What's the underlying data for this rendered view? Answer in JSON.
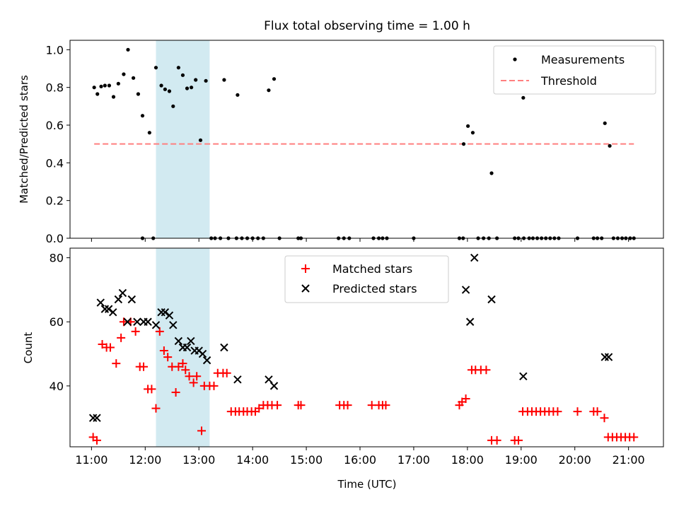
{
  "colors": {
    "measurement": "#000000",
    "threshold": "#ff7f7f",
    "matched": "#ff0000",
    "predicted": "#000000",
    "highlight_fill": "#add8e6"
  },
  "chart_data": [
    {
      "type": "scatter",
      "title": "Flux total observing time = 1.00 h",
      "xlabel": "",
      "ylabel": "Matched/Predicted stars",
      "xlim": [
        10.6,
        21.65
      ],
      "ylim": [
        0,
        1.05
      ],
      "yticks": [
        0.0,
        0.2,
        0.4,
        0.6,
        0.8,
        1.0
      ],
      "ytick_labels": [
        "0.0",
        "0.2",
        "0.4",
        "0.6",
        "0.8",
        "1.0"
      ],
      "highlight": [
        12.2,
        13.2
      ],
      "legend_position": "upper right",
      "threshold": {
        "name": "Threshold",
        "value": 0.5,
        "x": [
          11.05,
          21.1
        ]
      },
      "series": [
        {
          "name": "Measurements",
          "x": [
            11.05,
            11.11,
            11.18,
            11.25,
            11.33,
            11.41,
            11.5,
            11.6,
            11.68,
            11.78,
            11.87,
            11.95,
            12.08,
            12.2,
            12.3,
            12.37,
            12.45,
            12.52,
            12.62,
            12.7,
            12.78,
            12.86,
            12.94,
            13.03,
            13.13,
            13.23,
            13.47,
            13.72,
            14.3,
            14.4,
            17.93,
            18.01,
            18.1,
            18.45,
            19.04,
            20.56,
            20.65,
            11.95,
            12.15,
            13.3,
            13.4,
            13.55,
            13.7,
            13.8,
            13.9,
            14.0,
            14.1,
            14.2,
            14.5,
            14.85,
            14.9,
            15.6,
            15.7,
            15.8,
            16.25,
            16.35,
            16.42,
            16.5,
            17.0,
            17.85,
            17.92,
            18.2,
            18.3,
            18.4,
            18.55,
            18.88,
            18.95,
            19.05,
            19.15,
            19.22,
            19.3,
            19.38,
            19.46,
            19.54,
            19.62,
            19.7,
            20.05,
            20.35,
            20.42,
            20.5,
            20.72,
            20.8,
            20.88,
            20.95,
            21.03,
            21.1
          ],
          "y": [
            0.8,
            0.765,
            0.805,
            0.81,
            0.81,
            0.75,
            0.82,
            0.87,
            1.0,
            0.85,
            0.765,
            0.65,
            0.56,
            0.905,
            0.81,
            0.79,
            0.78,
            0.7,
            0.905,
            0.865,
            0.795,
            0.8,
            0.84,
            0.52,
            0.835,
            0.0,
            0.84,
            0.76,
            0.785,
            0.845,
            0.5,
            0.595,
            0.56,
            0.345,
            0.745,
            0.61,
            0.49,
            0.0,
            0.0,
            0.0,
            0.0,
            0.0,
            0.0,
            0.0,
            0.0,
            0.0,
            0.0,
            0.0,
            0.0,
            0.0,
            0.0,
            0.0,
            0.0,
            0.0,
            0.0,
            0.0,
            0.0,
            0.0,
            0.0,
            0.0,
            0.0,
            0.0,
            0.0,
            0.0,
            0.0,
            0.0,
            0.0,
            0.0,
            0.0,
            0.0,
            0.0,
            0.0,
            0.0,
            0.0,
            0.0,
            0.0,
            0.0,
            0.0,
            0.0,
            0.0,
            0.0,
            0.0,
            0.0,
            0.0,
            0.0,
            0.0
          ]
        }
      ]
    },
    {
      "type": "scatter",
      "title": "",
      "xlabel": "Time (UTC)",
      "ylabel": "Count",
      "xlim": [
        10.6,
        21.65
      ],
      "ylim": [
        21,
        83
      ],
      "yticks": [
        40,
        60,
        80
      ],
      "ytick_labels": [
        "40",
        "60",
        "80"
      ],
      "xticks": [
        11,
        12,
        13,
        14,
        15,
        16,
        17,
        18,
        19,
        20,
        21
      ],
      "xtick_labels": [
        "11:00",
        "12:00",
        "13:00",
        "14:00",
        "15:00",
        "16:00",
        "17:00",
        "18:00",
        "19:00",
        "20:00",
        "21:00"
      ],
      "highlight": [
        12.2,
        13.2
      ],
      "legend_position": "upper center",
      "series": [
        {
          "name": "Matched stars",
          "marker": "plus",
          "x": [
            11.03,
            11.1,
            11.2,
            11.28,
            11.35,
            11.46,
            11.55,
            11.6,
            11.73,
            11.82,
            11.9,
            11.97,
            12.05,
            12.12,
            12.2,
            12.27,
            12.35,
            12.42,
            12.5,
            12.57,
            12.62,
            12.7,
            12.75,
            12.82,
            12.9,
            12.96,
            13.05,
            13.1,
            13.2,
            13.28,
            13.35,
            13.45,
            13.52,
            13.6,
            13.68,
            13.75,
            13.83,
            13.9,
            13.98,
            14.05,
            14.12,
            14.2,
            14.28,
            14.36,
            14.46,
            14.85,
            14.9,
            15.62,
            15.7,
            15.77,
            16.22,
            16.35,
            16.42,
            16.48,
            17.85,
            17.9,
            17.97,
            18.08,
            18.15,
            18.25,
            18.35,
            18.45,
            18.55,
            18.88,
            18.95,
            19.03,
            19.12,
            19.2,
            19.28,
            19.36,
            19.44,
            19.52,
            19.6,
            19.68,
            20.05,
            20.35,
            20.42,
            20.55,
            20.62,
            20.7,
            20.78,
            20.86,
            20.94,
            21.02,
            21.1
          ],
          "y": [
            24,
            23,
            53,
            52,
            52,
            47,
            55,
            60,
            60,
            57,
            46,
            46,
            39,
            39,
            33,
            57,
            51,
            49,
            46,
            38,
            46,
            47,
            45,
            43,
            41,
            43,
            26,
            40,
            40,
            40,
            44,
            44,
            44,
            32,
            32,
            32,
            32,
            32,
            32,
            32,
            33,
            34,
            34,
            34,
            34,
            34,
            34,
            34,
            34,
            34,
            34,
            34,
            34,
            34,
            34,
            35,
            36,
            45,
            45,
            45,
            45,
            23,
            23,
            23,
            23,
            32,
            32,
            32,
            32,
            32,
            32,
            32,
            32,
            32,
            32,
            32,
            32,
            30,
            24,
            24,
            24,
            24,
            24,
            24,
            24
          ]
        },
        {
          "name": "Predicted stars",
          "marker": "x",
          "x": [
            11.03,
            11.1,
            11.17,
            11.25,
            11.32,
            11.4,
            11.5,
            11.58,
            11.67,
            11.75,
            11.85,
            11.97,
            12.05,
            12.2,
            12.3,
            12.37,
            12.45,
            12.52,
            12.62,
            12.7,
            12.78,
            12.85,
            12.92,
            13.0,
            13.07,
            13.15,
            13.47,
            13.72,
            14.3,
            14.4,
            17.97,
            18.05,
            18.13,
            18.45,
            19.04,
            20.56,
            20.63
          ],
          "y": [
            30,
            30,
            66,
            64,
            64,
            63,
            67,
            69,
            60,
            67,
            60,
            60,
            60,
            59,
            63,
            63,
            62,
            59,
            54,
            52,
            52,
            54,
            51,
            51,
            50,
            48,
            52,
            42,
            42,
            40,
            70,
            60,
            80,
            67,
            43,
            49,
            49
          ]
        }
      ]
    }
  ]
}
